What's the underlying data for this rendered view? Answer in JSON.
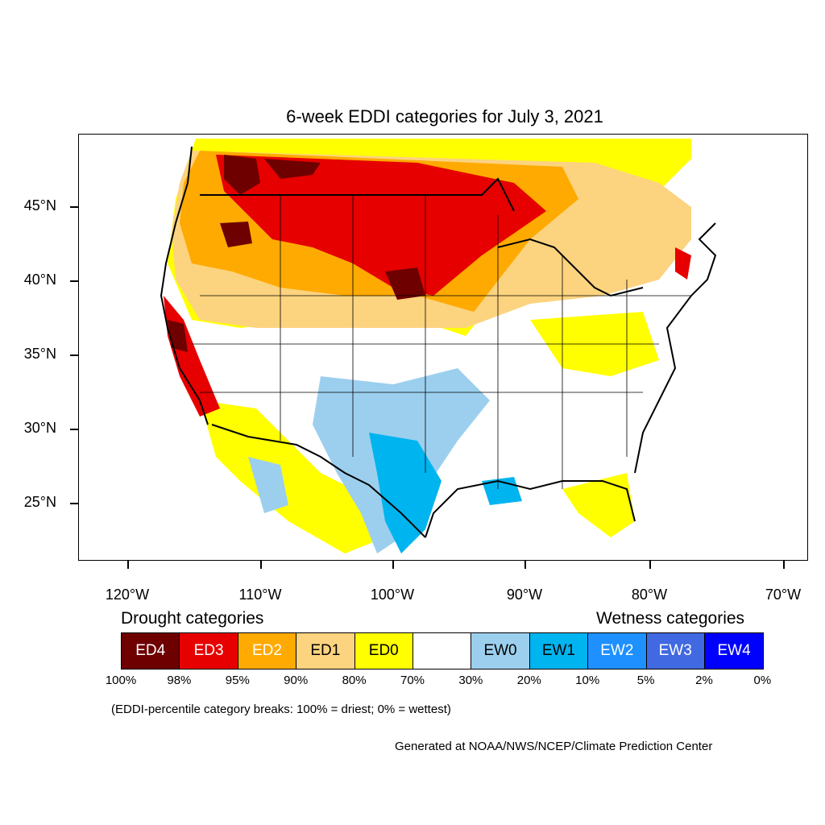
{
  "title": "6-week EDDI categories for July 3, 2021",
  "y_axis": {
    "ticks": [
      {
        "label": "45°N",
        "lat": 45
      },
      {
        "label": "40°N",
        "lat": 40
      },
      {
        "label": "35°N",
        "lat": 35
      },
      {
        "label": "30°N",
        "lat": 30
      },
      {
        "label": "25°N",
        "lat": 25
      }
    ]
  },
  "x_axis": {
    "ticks": [
      {
        "label": "120°W",
        "lon": -120
      },
      {
        "label": "110°W",
        "lon": -110
      },
      {
        "label": "100°W",
        "lon": -100
      },
      {
        "label": "90°W",
        "lon": -90
      },
      {
        "label": "80°W",
        "lon": -80
      },
      {
        "label": "70°W",
        "lon": -70
      }
    ]
  },
  "legend": {
    "drought_heading": "Drought categories",
    "wetness_heading": "Wetness categories",
    "categories": [
      {
        "label": "ED4",
        "color": "#6e0000",
        "text_color": "#ffffff"
      },
      {
        "label": "ED3",
        "color": "#e60000",
        "text_color": "#ffffff"
      },
      {
        "label": "ED2",
        "color": "#ffaa00",
        "text_color": "#ffffff"
      },
      {
        "label": "ED1",
        "color": "#fcd37f",
        "text_color": "#000000"
      },
      {
        "label": "ED0",
        "color": "#ffff00",
        "text_color": "#000000"
      },
      {
        "label": "",
        "color": "#ffffff",
        "text_color": "#000000"
      },
      {
        "label": "EW0",
        "color": "#9ccfee",
        "text_color": "#000000"
      },
      {
        "label": "EW1",
        "color": "#00b4f0",
        "text_color": "#000000"
      },
      {
        "label": "EW2",
        "color": "#1e90ff",
        "text_color": "#ffffff"
      },
      {
        "label": "EW3",
        "color": "#4169e1",
        "text_color": "#ffffff"
      },
      {
        "label": "EW4",
        "color": "#0000ff",
        "text_color": "#ffffff"
      }
    ],
    "breaks": [
      "100%",
      "98%",
      "95%",
      "90%",
      "80%",
      "70%",
      "30%",
      "20%",
      "10%",
      "5%",
      "2%",
      "0%"
    ]
  },
  "note": "(EDDI-percentile category breaks: 100% = driest; 0% = wettest)",
  "credit": "Generated at NOAA/NWS/NCEP/Climate Prediction Center"
}
